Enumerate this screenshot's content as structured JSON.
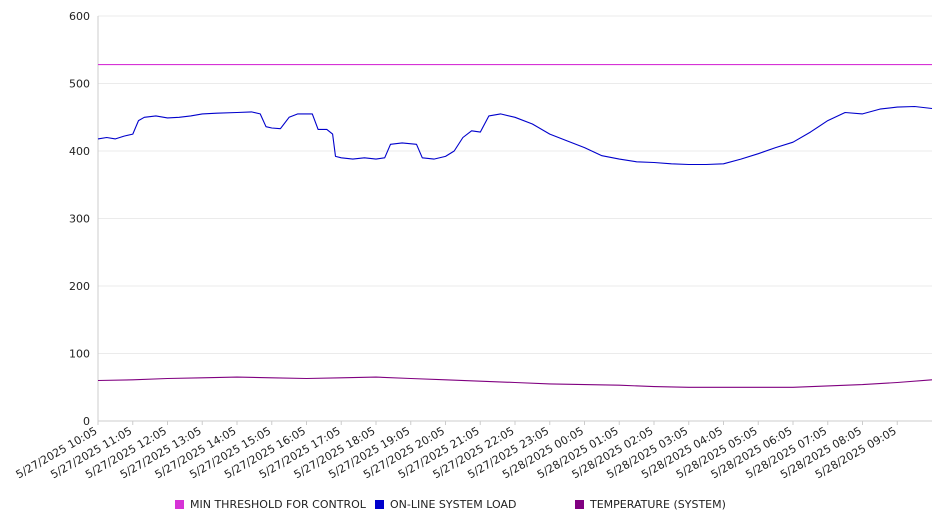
{
  "chart_data": {
    "type": "line",
    "title": "",
    "xlabel": "",
    "ylabel": "",
    "ylim": [
      0,
      600
    ],
    "y_ticks": [
      0,
      100,
      200,
      300,
      400,
      500,
      600
    ],
    "grid": "horizontal",
    "legend_position": "bottom",
    "x_tick_labels": [
      "5/27/2025 10:05",
      "5/27/2025 11:05",
      "5/27/2025 12:05",
      "5/27/2025 13:05",
      "5/27/2025 14:05",
      "5/27/2025 15:05",
      "5/27/2025 16:05",
      "5/27/2025 17:05",
      "5/27/2025 18:05",
      "5/27/2025 19:05",
      "5/27/2025 20:05",
      "5/27/2025 21:05",
      "5/27/2025 22:05",
      "5/27/2025 23:05",
      "5/28/2025 00:05",
      "5/28/2025 01:05",
      "5/28/2025 02:05",
      "5/28/2025 03:05",
      "5/28/2025 04:05",
      "5/28/2025 05:05",
      "5/28/2025 06:05",
      "5/28/2025 07:05",
      "5/28/2025 08:05",
      "5/28/2025 09:05"
    ],
    "x_start": "5/27/2025 10:05",
    "x_end": "5/28/2025 10:05",
    "series": [
      {
        "name": "MIN THRESHOLD FOR CONTROL",
        "color": "#d633d6",
        "points": [
          [
            "5/27/2025 10:05",
            528
          ],
          [
            "5/28/2025 10:05",
            528
          ]
        ]
      },
      {
        "name": "ON-LINE SYSTEM LOAD",
        "color": "#0000cc",
        "points": [
          [
            "5/27/2025 10:05",
            418
          ],
          [
            "5/27/2025 10:20",
            420
          ],
          [
            "5/27/2025 10:35",
            418
          ],
          [
            "5/27/2025 10:50",
            422
          ],
          [
            "5/27/2025 11:05",
            425
          ],
          [
            "5/27/2025 11:15",
            445
          ],
          [
            "5/27/2025 11:25",
            450
          ],
          [
            "5/27/2025 11:45",
            452
          ],
          [
            "5/27/2025 12:05",
            449
          ],
          [
            "5/27/2025 12:25",
            450
          ],
          [
            "5/27/2025 12:45",
            452
          ],
          [
            "5/27/2025 13:05",
            455
          ],
          [
            "5/27/2025 13:30",
            456
          ],
          [
            "5/27/2025 14:05",
            457
          ],
          [
            "5/27/2025 14:30",
            458
          ],
          [
            "5/27/2025 14:45",
            455
          ],
          [
            "5/27/2025 14:55",
            436
          ],
          [
            "5/27/2025 15:05",
            434
          ],
          [
            "5/27/2025 15:20",
            433
          ],
          [
            "5/27/2025 15:35",
            450
          ],
          [
            "5/27/2025 15:50",
            455
          ],
          [
            "5/27/2025 16:15",
            455
          ],
          [
            "5/27/2025 16:25",
            432
          ],
          [
            "5/27/2025 16:40",
            432
          ],
          [
            "5/27/2025 16:50",
            425
          ],
          [
            "5/27/2025 16:55",
            392
          ],
          [
            "5/27/2025 17:05",
            390
          ],
          [
            "5/27/2025 17:25",
            388
          ],
          [
            "5/27/2025 17:45",
            390
          ],
          [
            "5/27/2025 18:05",
            388
          ],
          [
            "5/27/2025 18:20",
            390
          ],
          [
            "5/27/2025 18:30",
            410
          ],
          [
            "5/27/2025 18:50",
            412
          ],
          [
            "5/27/2025 19:15",
            410
          ],
          [
            "5/27/2025 19:25",
            390
          ],
          [
            "5/27/2025 19:45",
            388
          ],
          [
            "5/27/2025 20:05",
            392
          ],
          [
            "5/27/2025 20:20",
            400
          ],
          [
            "5/27/2025 20:35",
            420
          ],
          [
            "5/27/2025 20:50",
            430
          ],
          [
            "5/27/2025 21:05",
            428
          ],
          [
            "5/27/2025 21:20",
            452
          ],
          [
            "5/27/2025 21:40",
            455
          ],
          [
            "5/27/2025 22:05",
            450
          ],
          [
            "5/27/2025 22:35",
            440
          ],
          [
            "5/27/2025 23:05",
            425
          ],
          [
            "5/27/2025 23:35",
            415
          ],
          [
            "5/28/2025 00:05",
            405
          ],
          [
            "5/28/2025 00:35",
            393
          ],
          [
            "5/28/2025 01:05",
            388
          ],
          [
            "5/28/2025 01:35",
            384
          ],
          [
            "5/28/2025 02:05",
            383
          ],
          [
            "5/28/2025 02:35",
            381
          ],
          [
            "5/28/2025 03:05",
            380
          ],
          [
            "5/28/2025 03:35",
            380
          ],
          [
            "5/28/2025 04:05",
            381
          ],
          [
            "5/28/2025 04:35",
            388
          ],
          [
            "5/28/2025 05:05",
            396
          ],
          [
            "5/28/2025 05:35",
            405
          ],
          [
            "5/28/2025 06:05",
            413
          ],
          [
            "5/28/2025 06:35",
            428
          ],
          [
            "5/28/2025 07:05",
            445
          ],
          [
            "5/28/2025 07:35",
            457
          ],
          [
            "5/28/2025 08:05",
            455
          ],
          [
            "5/28/2025 08:35",
            462
          ],
          [
            "5/28/2025 09:05",
            465
          ],
          [
            "5/28/2025 09:35",
            466
          ],
          [
            "5/28/2025 10:05",
            463
          ]
        ]
      },
      {
        "name": "TEMPERATURE (SYSTEM)",
        "color": "#800080",
        "points": [
          [
            "5/27/2025 10:05",
            60
          ],
          [
            "5/27/2025 11:05",
            61
          ],
          [
            "5/27/2025 12:05",
            63
          ],
          [
            "5/27/2025 13:05",
            64
          ],
          [
            "5/27/2025 14:05",
            65
          ],
          [
            "5/27/2025 15:05",
            64
          ],
          [
            "5/27/2025 16:05",
            63
          ],
          [
            "5/27/2025 17:05",
            64
          ],
          [
            "5/27/2025 18:05",
            65
          ],
          [
            "5/27/2025 19:05",
            63
          ],
          [
            "5/27/2025 20:05",
            61
          ],
          [
            "5/27/2025 21:05",
            59
          ],
          [
            "5/27/2025 22:05",
            57
          ],
          [
            "5/27/2025 23:05",
            55
          ],
          [
            "5/28/2025 00:05",
            54
          ],
          [
            "5/28/2025 01:05",
            53
          ],
          [
            "5/28/2025 02:05",
            51
          ],
          [
            "5/28/2025 03:05",
            50
          ],
          [
            "5/28/2025 04:05",
            50
          ],
          [
            "5/28/2025 05:05",
            50
          ],
          [
            "5/28/2025 06:05",
            50
          ],
          [
            "5/28/2025 07:05",
            52
          ],
          [
            "5/28/2025 08:05",
            54
          ],
          [
            "5/28/2025 09:05",
            57
          ],
          [
            "5/28/2025 10:05",
            61
          ]
        ]
      }
    ]
  }
}
